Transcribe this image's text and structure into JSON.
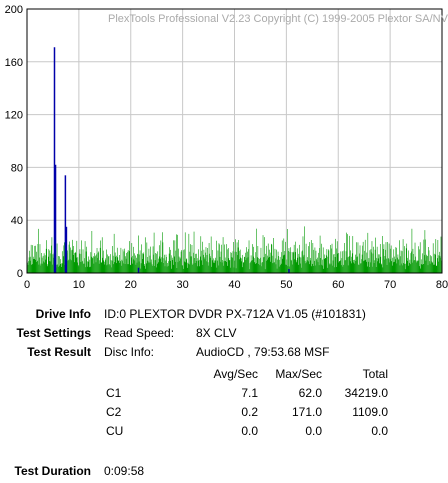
{
  "chart_data": {
    "type": "bar",
    "title": "PlexTools Professional V2.23 Copyright (C) 1999-2005 Plextor SA/NV",
    "xlim": [
      0,
      80
    ],
    "ylim": [
      0,
      200
    ],
    "xticks": [
      "0",
      "10",
      "20",
      "30",
      "40",
      "50",
      "60",
      "70",
      "80"
    ],
    "yticks": [
      "0",
      "40",
      "80",
      "120",
      "160",
      "200"
    ],
    "grid": true,
    "series": [
      {
        "key": "c1",
        "color": "#009900",
        "note": "C1 errors per second across the disc, typically 5-25 with peaks near 30-40",
        "x_range": [
          0,
          80
        ],
        "baseline_values": [
          12,
          18,
          9,
          22,
          15,
          30,
          11,
          17,
          25,
          8,
          14,
          20,
          28,
          10,
          16,
          24,
          13,
          19,
          27,
          9,
          15,
          21,
          33,
          12,
          18,
          26,
          11,
          17,
          23,
          14
        ]
      },
      {
        "key": "c2",
        "color": "#0000aa",
        "points": [
          {
            "x": 5.3,
            "y": 171
          },
          {
            "x": 5.5,
            "y": 82
          },
          {
            "x": 7.4,
            "y": 74
          },
          {
            "x": 7.6,
            "y": 35
          },
          {
            "x": 21.5,
            "y": 4
          },
          {
            "x": 50.5,
            "y": 3
          }
        ]
      }
    ],
    "marker_line_x": 80
  },
  "drive_info": {
    "label": "Drive Info",
    "value": "ID:0 PLEXTOR DVDR PX-712A V1.05 (#101831)"
  },
  "test_settings": {
    "label": "Test Settings",
    "key": "Read Speed:",
    "value": "8X CLV"
  },
  "test_result": {
    "label": "Test Result",
    "key": "Disc Info:",
    "value": "AudioCD , 79:53.68 MSF"
  },
  "table": {
    "headers": [
      "Avg/Sec",
      "Max/Sec",
      "Total"
    ],
    "rows": [
      {
        "name": "C1",
        "avg": "7.1",
        "max": "62.0",
        "total": "34219.0"
      },
      {
        "name": "C2",
        "avg": "0.2",
        "max": "171.0",
        "total": "1109.0"
      },
      {
        "name": "CU",
        "avg": "0.0",
        "max": "0.0",
        "total": "0.0"
      }
    ]
  },
  "test_duration": {
    "label": "Test Duration",
    "value": "0:09:58"
  }
}
